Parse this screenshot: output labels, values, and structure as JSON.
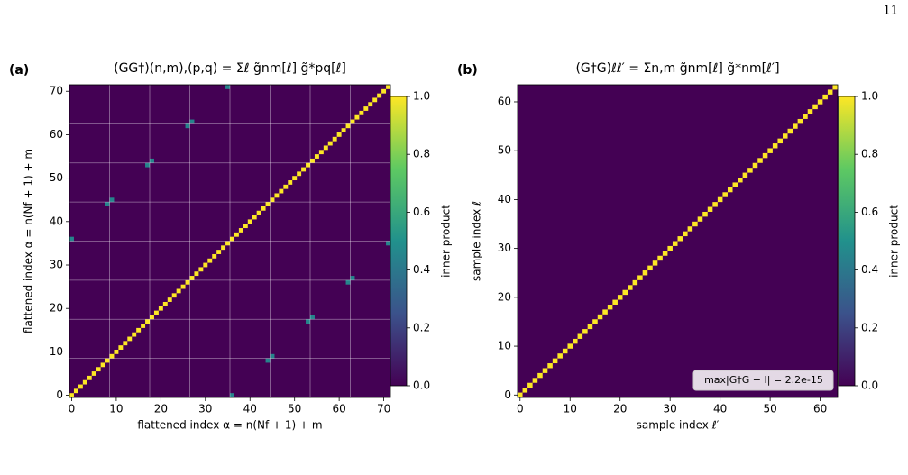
{
  "page_number": "11",
  "chart_data": [
    {
      "type": "heatmap",
      "panel_label": "(a)",
      "title": "(GG†)(n,m),(p,q) = Σℓ g̃nm[ℓ] g̃*pq[ℓ]",
      "x_label": "flattened index α = n(Nf + 1) + m",
      "y_label": "flattened index α = n(Nf + 1) + m",
      "size": 72,
      "background_value": 0,
      "diagonal_value": 1,
      "entries": {
        "x": [
          0,
          36,
          8,
          9,
          44,
          45,
          17,
          18,
          53,
          54,
          26,
          27,
          62,
          63,
          35,
          71
        ],
        "y": [
          36,
          0,
          44,
          45,
          8,
          9,
          53,
          54,
          17,
          18,
          62,
          63,
          26,
          27,
          71,
          35
        ],
        "values": [
          0.45,
          0.45,
          0.45,
          0.45,
          0.45,
          0.45,
          0.45,
          0.45,
          0.45,
          0.45,
          0.45,
          0.45,
          0.45,
          0.45,
          0.45,
          0.45
        ]
      },
      "grid_lines": [
        8.5,
        17.5,
        26.5,
        35.5,
        44.5,
        53.5,
        62.5
      ],
      "xlim": [
        -0.5,
        71.5
      ],
      "ylim": [
        -0.5,
        71.5
      ],
      "xticks": [
        0,
        10,
        20,
        30,
        40,
        50,
        60,
        70
      ],
      "yticks": [
        0,
        10,
        20,
        30,
        40,
        50,
        60,
        70
      ],
      "colormap": [
        "#440154",
        "#3b528b",
        "#21918c",
        "#5ec962",
        "#fde725"
      ],
      "clim": [
        0,
        1
      ],
      "colorbar_label": "inner product",
      "cticks": [
        {
          "value": 0,
          "label": "0.0"
        },
        {
          "value": 0.2,
          "label": "0.2"
        },
        {
          "value": 0.4,
          "label": "0.4"
        },
        {
          "value": 0.6,
          "label": "0.6"
        },
        {
          "value": 0.8,
          "label": "0.8"
        },
        {
          "value": 1,
          "label": "1.0"
        }
      ]
    },
    {
      "type": "heatmap",
      "panel_label": "(b)",
      "title": "(G†G)ℓℓ′ = Σn,m g̃nm[ℓ] g̃*nm[ℓ′]",
      "x_label": "sample index ℓ′",
      "y_label": "sample index ℓ",
      "size": 64,
      "background_value": 0,
      "diagonal_value": 1,
      "entries": {
        "x": [],
        "y": [],
        "values": []
      },
      "grid_lines": [],
      "xlim": [
        -0.5,
        63.5
      ],
      "ylim": [
        -0.5,
        63.5
      ],
      "xticks": [
        0,
        10,
        20,
        30,
        40,
        50,
        60
      ],
      "yticks": [
        0,
        10,
        20,
        30,
        40,
        50,
        60
      ],
      "colormap": [
        "#440154",
        "#3b528b",
        "#21918c",
        "#5ec962",
        "#fde725"
      ],
      "clim": [
        0,
        1
      ],
      "colorbar_label": "inner product",
      "cticks": [
        {
          "value": 0,
          "label": "0.0"
        },
        {
          "value": 0.2,
          "label": "0.2"
        },
        {
          "value": 0.4,
          "label": "0.4"
        },
        {
          "value": 0.6,
          "label": "0.6"
        },
        {
          "value": 0.8,
          "label": "0.8"
        },
        {
          "value": 1,
          "label": "1.0"
        }
      ],
      "annotation": "max|G†G − I| =  2.2e-15"
    }
  ]
}
